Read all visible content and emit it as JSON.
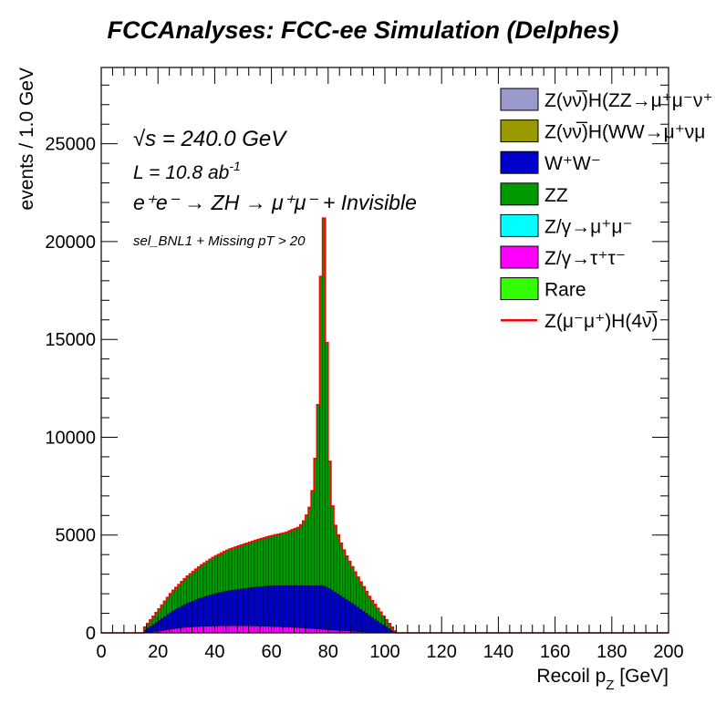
{
  "page": {
    "title": "FCCAnalyses: FCC-ee Simulation (Delphes)"
  },
  "chart_data": {
    "type": "histogram-stacked",
    "title": "FCCAnalyses: FCC-ee Simulation (Delphes)",
    "xlabel": "Recoil p_Z [GeV]",
    "ylabel": "events / 1.0 GeV",
    "xlim": [
      0,
      200
    ],
    "ylim": [
      0,
      28900
    ],
    "x_ticks": [
      "0",
      "20",
      "40",
      "60",
      "80",
      "100",
      "120",
      "140",
      "160",
      "180",
      "200"
    ],
    "y_ticks": [
      "0",
      "5000",
      "10000",
      "15000",
      "20000",
      "25000"
    ],
    "annotations": {
      "sqrt_s": "√s = 240.0 GeV",
      "lumi": "L = 10.8 ab",
      "lumi_exp": "-1",
      "process": "e⁺e⁻ → ZH → μ⁺μ⁻ + Invisible",
      "selection": "sel_BNL1 + Missing pT > 20"
    },
    "legend": [
      {
        "label": "Z(νν̅)H(ZZ→μ⁺μ⁻ν⁺",
        "color": "#9999cc",
        "style": "box"
      },
      {
        "label": "Z(νν̅)H(WW→μ⁺νμ",
        "color": "#999900",
        "style": "box"
      },
      {
        "label": "W⁺W⁻",
        "color": "#0000cc",
        "style": "box"
      },
      {
        "label": "ZZ",
        "color": "#009900",
        "style": "box"
      },
      {
        "label": "Z/γ→μ⁺μ⁻",
        "color": "#00ffff",
        "style": "box"
      },
      {
        "label": "Z/γ→τ⁺τ⁻",
        "color": "#ff00ff",
        "style": "box"
      },
      {
        "label": "Rare",
        "color": "#33ff00",
        "style": "box"
      },
      {
        "label": "Z(μ⁻μ⁺)H(4ν̅)",
        "color": "#ff0000",
        "style": "line"
      }
    ],
    "series": [
      {
        "name": "Z/γ→τ⁺τ⁻",
        "color": "#ff00ff",
        "x": [
          15,
          20,
          25,
          30,
          35,
          40,
          45,
          50,
          55,
          60,
          65,
          70,
          75,
          80,
          85,
          90,
          95,
          100,
          104
        ],
        "values": [
          0,
          80,
          200,
          290,
          330,
          350,
          360,
          360,
          350,
          330,
          300,
          260,
          210,
          160,
          110,
          70,
          40,
          15,
          0
        ]
      },
      {
        "name": "W⁺W⁻",
        "color": "#0000cc",
        "x": [
          15,
          20,
          25,
          30,
          35,
          40,
          45,
          50,
          55,
          60,
          65,
          70,
          75,
          77,
          78,
          79,
          80,
          82,
          85,
          90,
          95,
          100,
          104
        ],
        "values": [
          100,
          500,
          900,
          1200,
          1450,
          1650,
          1800,
          1900,
          2000,
          2080,
          2120,
          2160,
          2200,
          2220,
          2250,
          2200,
          2150,
          2000,
          1750,
          1300,
          800,
          350,
          0
        ]
      },
      {
        "name": "ZZ",
        "color": "#009900",
        "x": [
          15,
          20,
          25,
          30,
          35,
          40,
          45,
          50,
          55,
          60,
          65,
          70,
          72,
          74,
          75,
          76,
          77,
          78,
          79,
          80,
          81,
          82,
          84,
          86,
          90,
          95,
          100,
          104
        ],
        "values": [
          100,
          550,
          1000,
          1350,
          1650,
          1900,
          2100,
          2250,
          2400,
          2550,
          2700,
          3000,
          3400,
          4200,
          5500,
          7500,
          11000,
          20600,
          17000,
          8000,
          5000,
          3600,
          2800,
          2300,
          1600,
          900,
          400,
          0
        ]
      }
    ]
  }
}
